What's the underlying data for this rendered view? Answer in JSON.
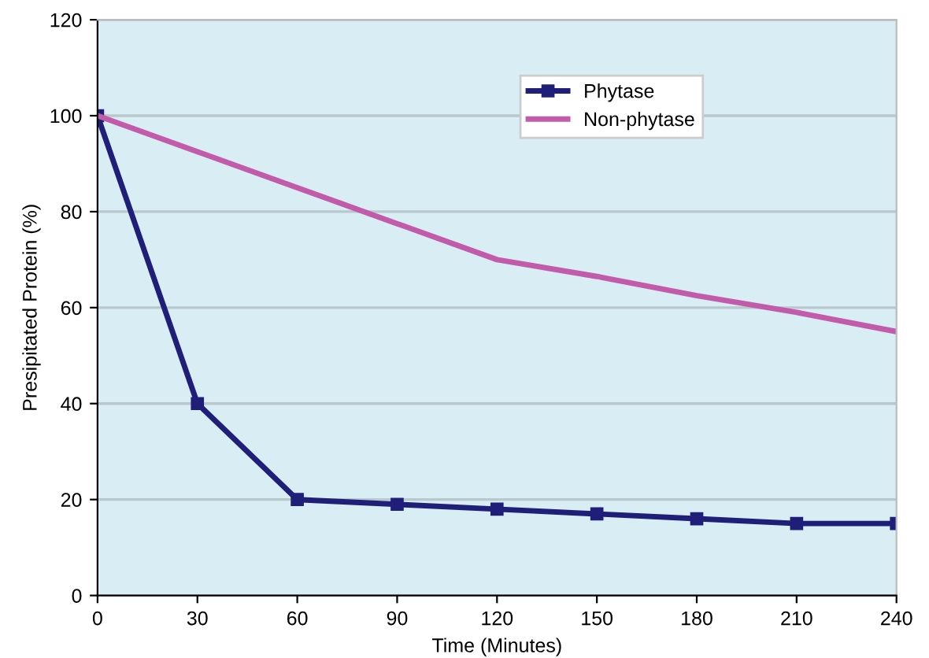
{
  "chart_data": {
    "type": "line",
    "xlabel": "Time (Minutes)",
    "ylabel": "Presipitated Protein (%)",
    "x": [
      0,
      30,
      60,
      90,
      120,
      150,
      180,
      210,
      240
    ],
    "series": [
      {
        "name": "Phytase",
        "color": "#1f1f7a",
        "marker": "square",
        "values": [
          100,
          40,
          20,
          19,
          18,
          17,
          16,
          15,
          15
        ]
      },
      {
        "name": "Non-phytase",
        "color": "#c35bab",
        "marker": "none",
        "values": [
          100,
          92.5,
          85,
          77.5,
          70,
          66.5,
          62.5,
          59,
          55
        ]
      }
    ],
    "xlim": [
      0,
      240
    ],
    "xticks": [
      0,
      30,
      60,
      90,
      120,
      150,
      180,
      210,
      240
    ],
    "ylim": [
      0,
      120
    ],
    "yticks": [
      0,
      20,
      40,
      60,
      80,
      100,
      120
    ],
    "grid": "y",
    "legend": "top right",
    "line_style": "solid"
  }
}
